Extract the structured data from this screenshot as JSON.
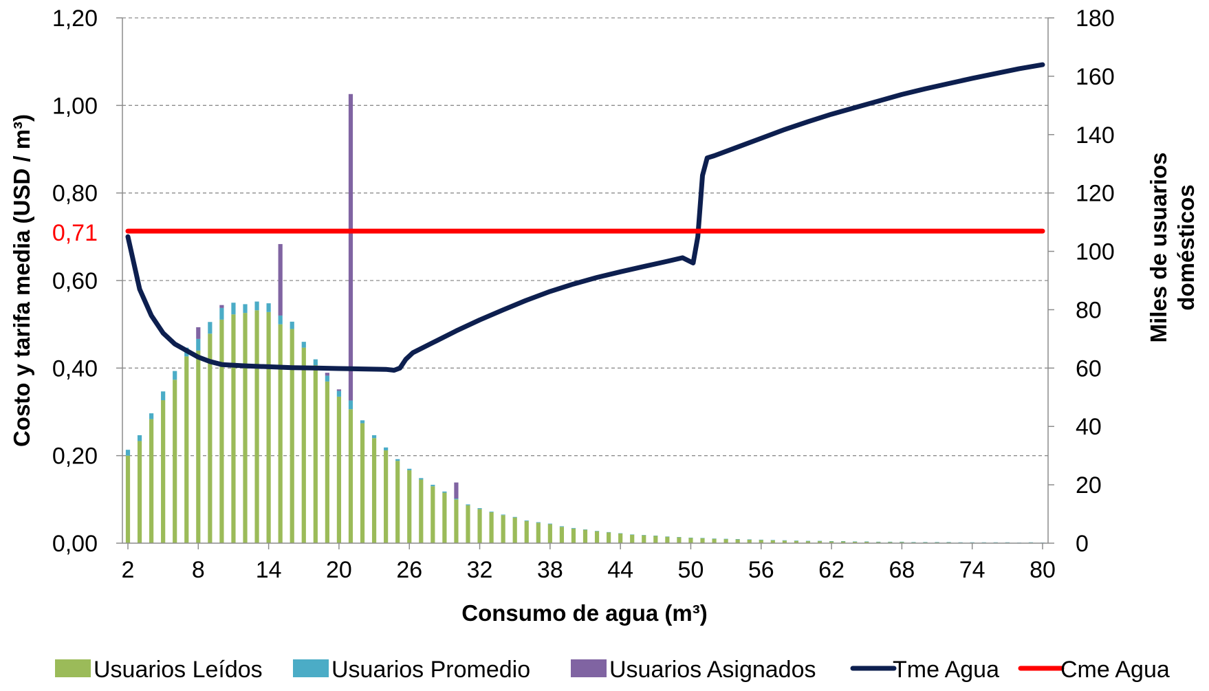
{
  "chart_data": {
    "type": "bar+line",
    "title": "",
    "xlabel": "Consumo de agua (m³)",
    "ylabel_left": "Costo y tarifa media (USD / m³)",
    "ylabel_right": "Miles de usuarios domésticos",
    "xlim": [
      2,
      80
    ],
    "x_ticks": [
      "2",
      "8",
      "14",
      "20",
      "26",
      "32",
      "38",
      "44",
      "50",
      "56",
      "62",
      "68",
      "74",
      "80"
    ],
    "ylim_left": [
      0,
      1.2
    ],
    "y_left_ticks": [
      "0,00",
      "0,20",
      "0,40",
      "0,60",
      "0,80",
      "1,00",
      "1,20"
    ],
    "ylim_right": [
      0,
      180
    ],
    "y_right_ticks": [
      "0",
      "20",
      "40",
      "60",
      "80",
      "100",
      "120",
      "140",
      "160",
      "180"
    ],
    "highlight_tick": {
      "label": "0,71",
      "value": 0.71,
      "color": "#ff0000"
    },
    "grid": "horizontal dashed at left-axis ticks",
    "legend_position": "bottom",
    "colors": {
      "leidos": "#9bbb59",
      "promedio": "#4bacc6",
      "asignados": "#8064a2",
      "tme": "#0d1f4f",
      "cme": "#ff0000"
    },
    "x": [
      2,
      3,
      4,
      5,
      6,
      7,
      8,
      9,
      10,
      11,
      12,
      13,
      14,
      15,
      16,
      17,
      18,
      19,
      20,
      21,
      22,
      23,
      24,
      25,
      26,
      27,
      28,
      29,
      30,
      31,
      32,
      33,
      34,
      35,
      36,
      37,
      38,
      39,
      40,
      41,
      42,
      43,
      44,
      45,
      46,
      47,
      48,
      49,
      50,
      51,
      52,
      53,
      54,
      55,
      56,
      57,
      58,
      59,
      60,
      61,
      62,
      63,
      64,
      65,
      66,
      67,
      68,
      69,
      70,
      71,
      72,
      73,
      74,
      75,
      76,
      77,
      78,
      79,
      80
    ],
    "bar_series": [
      {
        "name": "Usuarios Leídos",
        "axis": "right",
        "values": [
          30,
          35,
          42.5,
          49,
          56,
          64,
          66,
          71.8,
          76.6,
          78.4,
          78.9,
          79.8,
          79.2,
          75,
          73.4,
          67,
          61,
          55.4,
          50.2,
          45.9,
          41.1,
          36,
          31.8,
          28.2,
          25,
          21.8,
          19.5,
          17.3,
          15,
          13,
          11.7,
          10.6,
          9.6,
          8.8,
          7.6,
          7,
          6.5,
          5.6,
          5,
          4.6,
          4.1,
          3.7,
          3.3,
          2.9,
          2.7,
          2.5,
          2.2,
          2,
          1.8,
          1.7,
          1.5,
          1.4,
          1.3,
          1.2,
          1.1,
          1,
          0.9,
          0.8,
          0.7,
          0.7,
          0.6,
          0.6,
          0.5,
          0.5,
          0.4,
          0.4,
          0.4,
          0.3,
          0.3,
          0.3,
          0.3,
          0.2,
          0.2,
          0.2,
          0.2,
          0.2,
          0.1,
          0.2,
          0.1
        ]
      },
      {
        "name": "Usuarios Promedio",
        "axis": "right",
        "values": [
          2,
          2,
          2,
          3,
          3,
          3,
          4,
          4,
          4,
          4,
          3,
          3,
          3,
          3,
          2.5,
          2,
          2,
          2,
          2,
          3,
          1,
          1,
          1,
          0.6,
          0.5,
          0.5,
          0.5,
          0.4,
          0.3,
          0.3,
          0.3,
          0.2,
          0.2,
          0.2,
          0.2,
          0.2,
          0.2,
          0.2,
          0.2,
          0.1,
          0.1,
          0.1,
          0.1,
          0.1,
          0.1,
          0.1,
          0.1,
          0.1,
          0.1,
          0.1,
          0.1,
          0.1,
          0.1,
          0.1,
          0.1,
          0.1,
          0.1,
          0.1,
          0.1,
          0.1,
          0.1,
          0.1,
          0.1,
          0.1,
          0.1,
          0.1,
          0.1,
          0.1,
          0.1,
          0.1,
          0.1,
          0.1,
          0.1,
          0.1,
          0.1,
          0.1,
          0.1,
          0.1,
          0.1
        ]
      },
      {
        "name": "Usuarios Asignados",
        "axis": "right",
        "values": [
          0,
          0,
          0,
          0,
          0,
          0,
          4,
          0,
          1,
          0,
          0,
          0,
          0,
          24.5,
          0,
          0,
          0,
          1,
          0.5,
          105,
          0,
          0,
          0,
          0,
          0,
          0,
          0,
          0,
          5.5,
          0,
          0,
          0,
          0,
          0,
          0,
          0,
          0,
          0,
          0,
          0,
          0,
          0,
          0,
          0,
          0,
          0,
          0,
          0,
          0,
          0,
          0,
          0,
          0,
          0,
          0,
          0,
          0,
          0,
          0,
          0,
          0,
          0,
          0,
          0,
          0,
          0,
          0,
          0,
          0,
          0,
          0,
          0,
          0,
          0,
          0,
          0,
          0,
          0,
          0
        ]
      }
    ],
    "line_series": [
      {
        "name": "Tme Agua",
        "axis": "left",
        "points": [
          [
            2,
            0.7
          ],
          [
            3,
            0.58
          ],
          [
            4,
            0.52
          ],
          [
            5,
            0.48
          ],
          [
            6,
            0.455
          ],
          [
            7,
            0.44
          ],
          [
            8,
            0.425
          ],
          [
            9,
            0.415
          ],
          [
            10,
            0.408
          ],
          [
            12,
            0.405
          ],
          [
            14,
            0.403
          ],
          [
            16,
            0.401
          ],
          [
            18,
            0.4
          ],
          [
            20,
            0.399
          ],
          [
            22,
            0.398
          ],
          [
            24,
            0.397
          ],
          [
            24.7,
            0.395
          ],
          [
            25.2,
            0.4
          ],
          [
            25.7,
            0.42
          ],
          [
            26.3,
            0.435
          ],
          [
            28,
            0.458
          ],
          [
            30,
            0.485
          ],
          [
            32,
            0.51
          ],
          [
            34,
            0.533
          ],
          [
            36,
            0.555
          ],
          [
            38,
            0.575
          ],
          [
            40,
            0.592
          ],
          [
            42,
            0.607
          ],
          [
            44,
            0.62
          ],
          [
            46,
            0.632
          ],
          [
            48,
            0.644
          ],
          [
            49.3,
            0.652
          ],
          [
            50.2,
            0.64
          ],
          [
            50.6,
            0.7
          ],
          [
            51,
            0.84
          ],
          [
            51.4,
            0.88
          ],
          [
            52,
            0.885
          ],
          [
            54,
            0.905
          ],
          [
            56,
            0.925
          ],
          [
            58,
            0.945
          ],
          [
            60,
            0.963
          ],
          [
            62,
            0.98
          ],
          [
            64,
            0.995
          ],
          [
            66,
            1.01
          ],
          [
            68,
            1.025
          ],
          [
            70,
            1.038
          ],
          [
            72,
            1.05
          ],
          [
            74,
            1.062
          ],
          [
            76,
            1.073
          ],
          [
            78,
            1.084
          ],
          [
            80,
            1.093
          ]
        ]
      },
      {
        "name": "Cme Agua",
        "axis": "left",
        "points": [
          [
            2,
            0.713
          ],
          [
            80,
            0.713
          ]
        ]
      }
    ]
  }
}
